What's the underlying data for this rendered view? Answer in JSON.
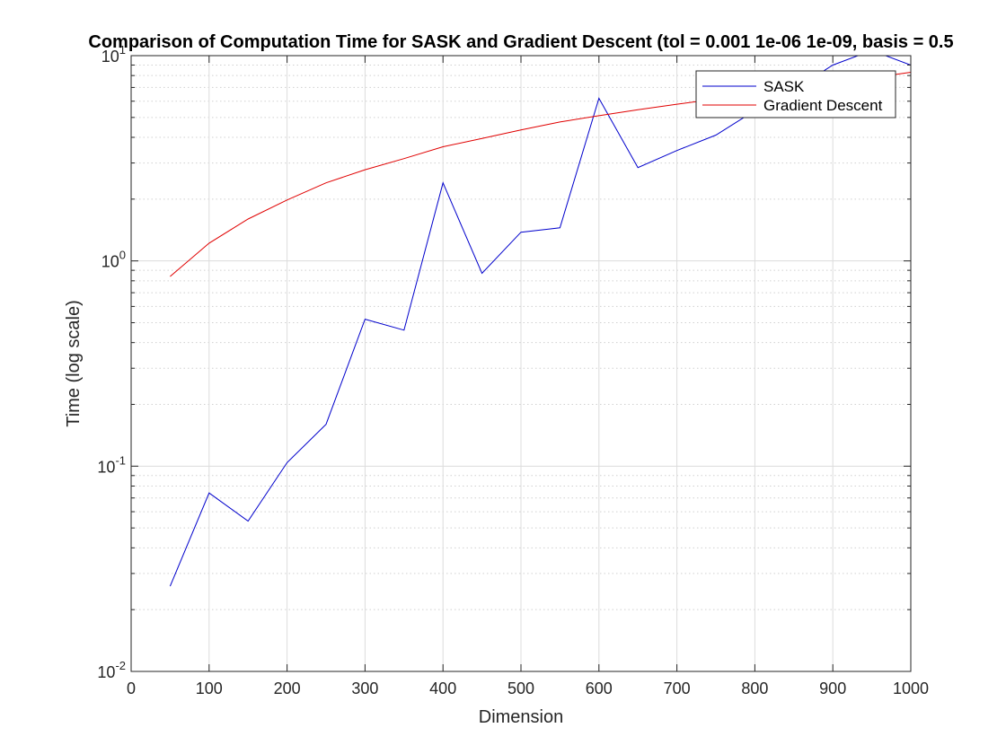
{
  "chart_data": {
    "type": "line",
    "title": "Comparison of Computation Time for SASK and Gradient Descent (tol = 0.001        1e-06        1e-09, basis = 0.5",
    "xlabel": "Dimension",
    "ylabel": "Time (log scale)",
    "xlim": [
      0,
      1000
    ],
    "ylim": [
      0.01,
      10
    ],
    "y_scale": "log",
    "x_ticks": [
      0,
      100,
      200,
      300,
      400,
      500,
      600,
      700,
      800,
      900,
      1000
    ],
    "y_ticks": [
      {
        "value": 0.01,
        "base": "10",
        "exp": "-2"
      },
      {
        "value": 0.1,
        "base": "10",
        "exp": "-1"
      },
      {
        "value": 1,
        "base": "10",
        "exp": "0"
      },
      {
        "value": 10,
        "base": "10",
        "exp": "1"
      }
    ],
    "grid": true,
    "minor_grid": true,
    "legend_position": "top-right",
    "x": [
      50,
      100,
      150,
      200,
      250,
      300,
      350,
      400,
      450,
      500,
      550,
      600,
      650,
      700,
      750,
      800,
      850,
      900,
      950,
      1000
    ],
    "series": [
      {
        "name": "SASK",
        "color": "#0000cc",
        "values": [
          0.026,
          0.074,
          0.054,
          0.104,
          0.16,
          0.52,
          0.46,
          2.4,
          0.87,
          1.38,
          1.45,
          6.2,
          2.85,
          3.45,
          4.1,
          5.4,
          6.8,
          9.0,
          10.6,
          9.0
        ]
      },
      {
        "name": "Gradient Descent",
        "color": "#e00000",
        "values": [
          0.84,
          1.22,
          1.6,
          1.98,
          2.4,
          2.78,
          3.15,
          3.6,
          3.95,
          4.35,
          4.75,
          5.1,
          5.45,
          5.8,
          6.15,
          6.5,
          6.9,
          7.3,
          7.8,
          8.3
        ]
      }
    ]
  }
}
